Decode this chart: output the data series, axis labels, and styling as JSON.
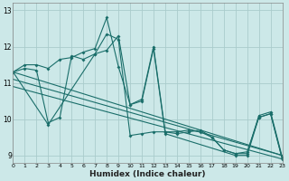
{
  "xlabel": "Humidex (Indice chaleur)",
  "bg_color": "#cce8e8",
  "grid_color": "#aacccc",
  "line_color": "#1a6e6a",
  "series": [
    {
      "x": [
        0,
        1,
        2,
        3,
        4,
        5,
        6,
        7,
        8,
        9,
        10,
        11,
        12,
        13,
        14,
        15,
        16,
        17,
        18,
        19,
        20,
        21,
        22,
        23
      ],
      "y": [
        11.3,
        11.5,
        11.5,
        11.4,
        11.65,
        11.7,
        11.85,
        11.95,
        12.8,
        11.45,
        10.4,
        10.55,
        12.0,
        9.65,
        9.6,
        9.65,
        9.7,
        9.5,
        9.15,
        9.05,
        9.05,
        10.1,
        10.2,
        8.95
      ],
      "marker": true
    },
    {
      "x": [
        0,
        1,
        2,
        3,
        4,
        5,
        6,
        7,
        8,
        9,
        10,
        11,
        12,
        13,
        14,
        15,
        16,
        17,
        18,
        19,
        20,
        21,
        22,
        23
      ],
      "y": [
        11.3,
        11.4,
        11.35,
        9.9,
        10.05,
        11.75,
        11.65,
        11.8,
        12.35,
        12.2,
        9.55,
        9.6,
        9.65,
        9.65,
        9.65,
        9.7,
        9.65,
        9.5,
        9.15,
        9.05,
        9.1,
        10.05,
        10.15,
        8.9
      ],
      "marker": true
    },
    {
      "x": [
        0,
        3,
        7,
        8,
        9,
        10,
        11,
        12,
        13,
        19,
        20,
        21,
        22,
        23
      ],
      "y": [
        11.3,
        9.85,
        11.8,
        11.9,
        12.3,
        10.4,
        10.5,
        11.95,
        9.6,
        9.0,
        9.0,
        10.05,
        10.15,
        8.9
      ],
      "marker": true
    },
    {
      "x": [
        0,
        23
      ],
      "y": [
        11.3,
        9.0
      ],
      "marker": false
    },
    {
      "x": [
        0,
        23
      ],
      "y": [
        11.1,
        9.0
      ],
      "marker": false
    },
    {
      "x": [
        0,
        23
      ],
      "y": [
        10.9,
        8.9
      ],
      "marker": false
    }
  ],
  "xlim": [
    0,
    23
  ],
  "ylim": [
    8.8,
    13.2
  ],
  "yticks": [
    9,
    10,
    11,
    12,
    13
  ],
  "xticks": [
    0,
    1,
    2,
    3,
    4,
    5,
    6,
    7,
    8,
    9,
    10,
    11,
    12,
    13,
    14,
    15,
    16,
    17,
    18,
    19,
    20,
    21,
    22,
    23
  ]
}
